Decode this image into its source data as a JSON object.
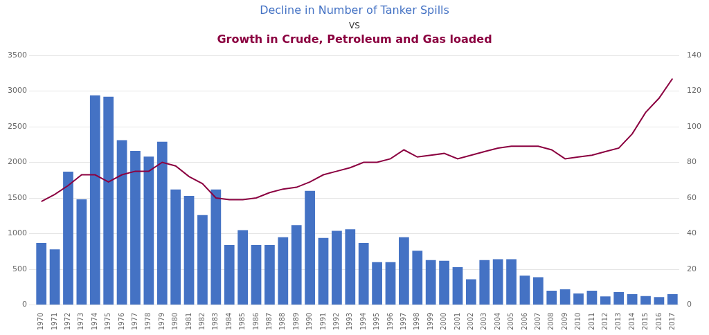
{
  "chart_data": {
    "type": "bar",
    "title": "Decline in Number of Tanker Spills",
    "annotations": [
      "VS"
    ],
    "subtitle": "Growth in Crude, Petroleum and Gas loaded",
    "categories": [
      1970,
      1971,
      1972,
      1973,
      1974,
      1975,
      1976,
      1977,
      1978,
      1979,
      1980,
      1981,
      1982,
      1983,
      1984,
      1985,
      1986,
      1987,
      1988,
      1989,
      1990,
      1991,
      1992,
      1993,
      1994,
      1995,
      1996,
      1997,
      1998,
      1999,
      2000,
      2001,
      2002,
      2003,
      2004,
      2005,
      2006,
      2007,
      2008,
      2009,
      2010,
      2011,
      2012,
      2013,
      2014,
      2015,
      2016,
      2017
    ],
    "series": [
      {
        "type": "bar",
        "color": "#4472C4",
        "values": [
          870,
          780,
          1870,
          1480,
          2940,
          2920,
          2310,
          2160,
          2080,
          2290,
          1620,
          1530,
          1260,
          1620,
          840,
          1050,
          840,
          840,
          950,
          1120,
          1600,
          940,
          1040,
          1060,
          870,
          600,
          600,
          950,
          760,
          630,
          620,
          530,
          360,
          630,
          640,
          640,
          410,
          390,
          200,
          220,
          160,
          200,
          120,
          180,
          150,
          125,
          110,
          150
        ]
      },
      {
        "type": "line",
        "color": "#8B0040",
        "axis": "y2",
        "values": [
          58,
          62,
          67,
          73,
          73,
          69,
          73,
          75,
          75,
          80,
          78,
          72,
          68,
          60,
          59,
          59,
          60,
          63,
          65,
          66,
          69,
          73,
          75,
          77,
          80,
          80,
          82,
          87,
          83,
          84,
          85,
          82,
          84,
          86,
          88,
          89,
          89,
          89,
          87,
          82,
          83,
          84,
          86,
          88,
          96,
          108,
          116,
          127
        ]
      }
    ],
    "ylim": [
      0,
      3500
    ],
    "yticks": [
      0,
      500,
      1000,
      1500,
      2000,
      2500,
      3000,
      3500
    ],
    "y2lim": [
      0,
      140
    ],
    "y2ticks": [
      0,
      20,
      40,
      60,
      80,
      100,
      120,
      140
    ],
    "grid": true
  }
}
